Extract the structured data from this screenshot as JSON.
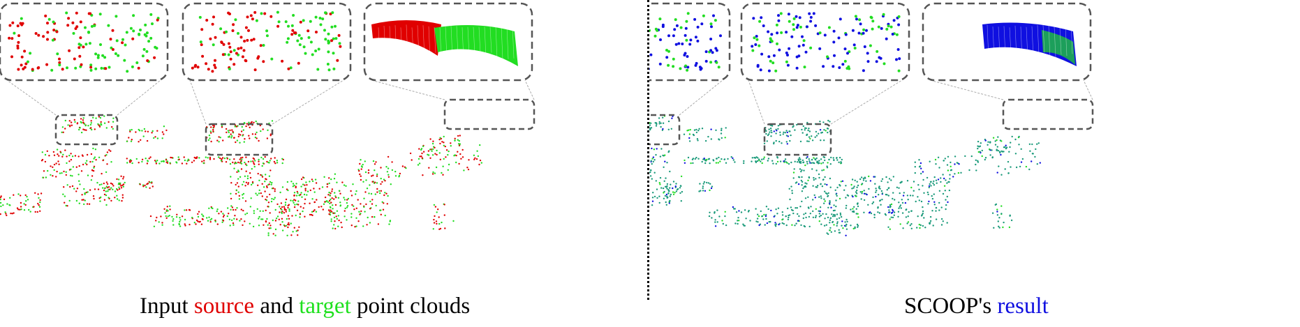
{
  "colors": {
    "source": "#e00000",
    "target": "#22dd22",
    "result": "#1010e0",
    "mixed": "#1a9a7a",
    "box_stroke": "#555555",
    "callout_line": "#aaaaaa"
  },
  "left_panel": {
    "caption": {
      "prefix": "Input ",
      "word_source": "source",
      "middle": " and ",
      "word_target": "target",
      "suffix": " point clouds"
    }
  },
  "right_panel": {
    "caption": {
      "prefix": "SCOOP's ",
      "word_result": "result"
    }
  }
}
